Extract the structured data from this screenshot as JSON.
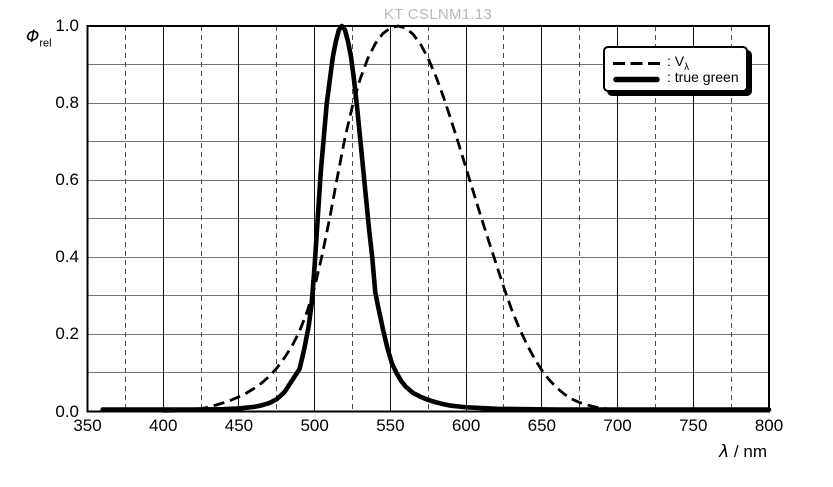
{
  "title": "KT CSLNM1.13",
  "axes": {
    "y_label_symbol": "Φ",
    "y_label_sub": "rel",
    "x_label_symbol": "λ",
    "x_label_rest": " / nm",
    "x_ticks": [
      "350",
      "400",
      "450",
      "500",
      "550",
      "600",
      "650",
      "700",
      "750",
      "800"
    ],
    "y_ticks": [
      "1.0",
      "0.8",
      "0.6",
      "0.4",
      "0.2",
      "0.0"
    ]
  },
  "legend": {
    "items": [
      {
        "style": "dashed",
        "label_prefix": ": V",
        "label_sub": "λ"
      },
      {
        "style": "solid",
        "label_prefix": ": true green",
        "label_sub": ""
      }
    ]
  },
  "colors": {
    "background": "#ffffff",
    "axis": "#000000",
    "grid_horizontal": "#757575",
    "grid_vertical_major": "#111111",
    "grid_vertical_minor": "#4d4d4d",
    "curve": "#000000",
    "title_text": "#b6bac0"
  },
  "chart_data": {
    "type": "line",
    "title": "KT CSLNM1.13",
    "xlabel": "λ / nm",
    "ylabel": "Φ_rel",
    "xlim": [
      350,
      800
    ],
    "ylim": [
      0,
      1
    ],
    "x_major_grid_step": 50,
    "x_minor_grid_step": 25,
    "y_grid_step": 0.1,
    "legend_position": "top-right",
    "series": [
      {
        "name": "V_λ",
        "line": "dashed",
        "points": [
          [
            400,
            0.0004
          ],
          [
            405,
            0.0006
          ],
          [
            410,
            0.0012
          ],
          [
            415,
            0.0022
          ],
          [
            420,
            0.004
          ],
          [
            425,
            0.0073
          ],
          [
            430,
            0.0116
          ],
          [
            435,
            0.0168
          ],
          [
            440,
            0.023
          ],
          [
            445,
            0.0298
          ],
          [
            450,
            0.038
          ],
          [
            455,
            0.048
          ],
          [
            460,
            0.06
          ],
          [
            465,
            0.0739
          ],
          [
            470,
            0.091
          ],
          [
            475,
            0.1126
          ],
          [
            480,
            0.139
          ],
          [
            485,
            0.1693
          ],
          [
            490,
            0.208
          ],
          [
            495,
            0.2586
          ],
          [
            500,
            0.323
          ],
          [
            505,
            0.4073
          ],
          [
            510,
            0.503
          ],
          [
            515,
            0.6082
          ],
          [
            520,
            0.71
          ],
          [
            525,
            0.7932
          ],
          [
            530,
            0.862
          ],
          [
            535,
            0.9149
          ],
          [
            540,
            0.954
          ],
          [
            545,
            0.9803
          ],
          [
            550,
            0.995
          ],
          [
            555,
            1.0
          ],
          [
            560,
            0.995
          ],
          [
            565,
            0.9786
          ],
          [
            570,
            0.952
          ],
          [
            575,
            0.9154
          ],
          [
            580,
            0.87
          ],
          [
            585,
            0.8163
          ],
          [
            590,
            0.757
          ],
          [
            595,
            0.6949
          ],
          [
            600,
            0.631
          ],
          [
            605,
            0.5668
          ],
          [
            610,
            0.503
          ],
          [
            615,
            0.4412
          ],
          [
            620,
            0.381
          ],
          [
            625,
            0.321
          ],
          [
            630,
            0.265
          ],
          [
            635,
            0.217
          ],
          [
            640,
            0.175
          ],
          [
            645,
            0.1382
          ],
          [
            650,
            0.107
          ],
          [
            655,
            0.0816
          ],
          [
            660,
            0.061
          ],
          [
            665,
            0.0446
          ],
          [
            670,
            0.032
          ],
          [
            675,
            0.0232
          ],
          [
            680,
            0.017
          ],
          [
            685,
            0.0119
          ],
          [
            690,
            0.0082
          ],
          [
            695,
            0.0057
          ],
          [
            700,
            0.0041
          ],
          [
            705,
            0.0029
          ],
          [
            710,
            0.0021
          ],
          [
            715,
            0.0015
          ],
          [
            720,
            0.001
          ]
        ]
      },
      {
        "name": "true green",
        "line": "solid",
        "points": [
          [
            360,
            0.005
          ],
          [
            400,
            0.005
          ],
          [
            420,
            0.005
          ],
          [
            440,
            0.006
          ],
          [
            450,
            0.008
          ],
          [
            460,
            0.012
          ],
          [
            465,
            0.016
          ],
          [
            470,
            0.022
          ],
          [
            475,
            0.032
          ],
          [
            480,
            0.05
          ],
          [
            485,
            0.08
          ],
          [
            490,
            0.11
          ],
          [
            493,
            0.16
          ],
          [
            496,
            0.22
          ],
          [
            498,
            0.28
          ],
          [
            500,
            0.38
          ],
          [
            502,
            0.5
          ],
          [
            504,
            0.62
          ],
          [
            506,
            0.71
          ],
          [
            508,
            0.8
          ],
          [
            510,
            0.86
          ],
          [
            512,
            0.92
          ],
          [
            514,
            0.96
          ],
          [
            516,
            0.99
          ],
          [
            518,
            1.0
          ],
          [
            520,
            0.99
          ],
          [
            522,
            0.96
          ],
          [
            524,
            0.92
          ],
          [
            526,
            0.86
          ],
          [
            528,
            0.79
          ],
          [
            530,
            0.71
          ],
          [
            532,
            0.63
          ],
          [
            534,
            0.55
          ],
          [
            536,
            0.47
          ],
          [
            538,
            0.4
          ],
          [
            540,
            0.31
          ],
          [
            542,
            0.27
          ],
          [
            545,
            0.215
          ],
          [
            548,
            0.165
          ],
          [
            551,
            0.125
          ],
          [
            554,
            0.1
          ],
          [
            557,
            0.08
          ],
          [
            560,
            0.065
          ],
          [
            565,
            0.048
          ],
          [
            570,
            0.038
          ],
          [
            575,
            0.03
          ],
          [
            580,
            0.024
          ],
          [
            585,
            0.019
          ],
          [
            590,
            0.015
          ],
          [
            600,
            0.011
          ],
          [
            610,
            0.009
          ],
          [
            620,
            0.007
          ],
          [
            640,
            0.006
          ],
          [
            660,
            0.005
          ],
          [
            700,
            0.005
          ],
          [
            750,
            0.005
          ],
          [
            800,
            0.005
          ]
        ]
      }
    ]
  }
}
